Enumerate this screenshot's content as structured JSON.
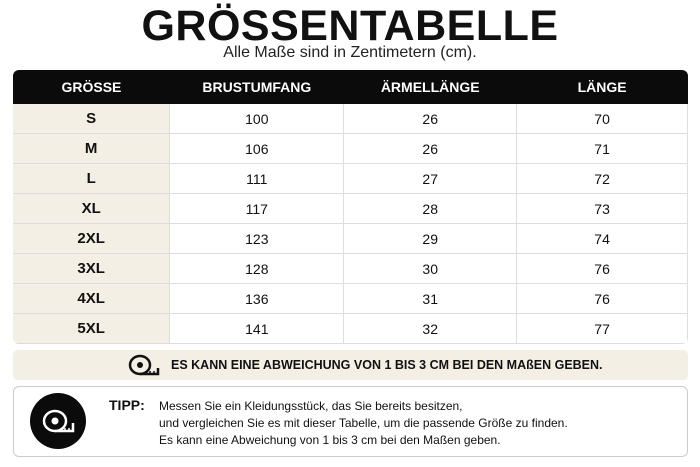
{
  "header": {
    "title": "GRÖSSENTABELLE",
    "subtitle": "Alle Maße sind in Zentimetern (cm)."
  },
  "table": {
    "columns": [
      "GRÖSSE",
      "BRUSTUMFANG",
      "ÄRMELLÄNGE",
      "LÄNGE"
    ],
    "rows": [
      [
        "S",
        100,
        26,
        70
      ],
      [
        "M",
        106,
        26,
        71
      ],
      [
        "L",
        111,
        27,
        72
      ],
      [
        "XL",
        117,
        28,
        73
      ],
      [
        "2XL",
        123,
        29,
        74
      ],
      [
        "3XL",
        128,
        30,
        76
      ],
      [
        "4XL",
        136,
        31,
        76
      ],
      [
        "5XL",
        141,
        32,
        77
      ]
    ]
  },
  "note": "ES KANN EINE ABWEICHUNG VON 1 BIS 3 CM BEI DEN MAßEN GEBEN.",
  "tip": {
    "label": "TIPP:",
    "lines": [
      "Messen Sie ein Kleidungsstück, das Sie bereits besitzen,",
      "und vergleichen Sie es mit dieser Tabelle, um die passende Größe zu finden.",
      "Es kann eine Abweichung von 1 bis 3 cm bei den Maßen geben."
    ]
  }
}
